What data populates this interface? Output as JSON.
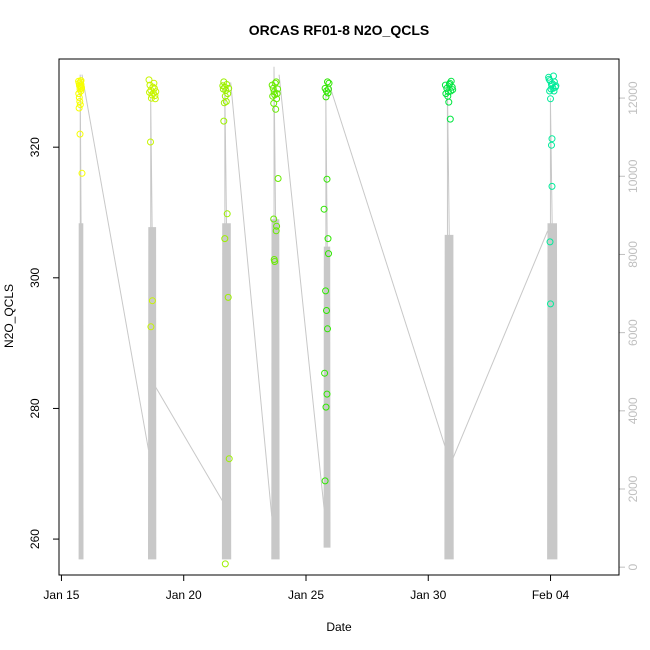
{
  "chart_data": {
    "type": "scatter",
    "title": "ORCAS RF01-8 N2O_QCLS",
    "xlabel": "Date",
    "ylabel": "N2O_QCLS",
    "x_ticks": [
      "Jan 15",
      "Jan 20",
      "Jan 25",
      "Jan 30",
      "Feb 04"
    ],
    "x_tick_days": [
      15,
      20,
      25,
      30,
      35
    ],
    "xlim_days": [
      14.9,
      37.8
    ],
    "ylim": [
      254.5,
      333.5
    ],
    "y_ticks": [
      260,
      280,
      300,
      320
    ],
    "y2lim": [
      -200,
      13000
    ],
    "y2_ticks": [
      0,
      2000,
      4000,
      6000,
      8000,
      10000,
      12000
    ],
    "grid": false,
    "series": [
      {
        "color": "#f7ff00",
        "points": [
          [
            15.72,
            329.8
          ],
          [
            15.74,
            329.4
          ],
          [
            15.76,
            328.9
          ],
          [
            15.78,
            330.0
          ],
          [
            15.8,
            329.6
          ],
          [
            15.71,
            328.2
          ],
          [
            15.73,
            327.6
          ],
          [
            15.75,
            327.0
          ],
          [
            15.77,
            326.5
          ],
          [
            15.79,
            328.6
          ],
          [
            15.81,
            329.2
          ],
          [
            15.7,
            330.1
          ],
          [
            15.82,
            329.0
          ],
          [
            15.76,
            322.0
          ],
          [
            15.84,
            316.0
          ],
          [
            15.72,
            326.0
          ],
          [
            15.8,
            330.2
          ],
          [
            15.78,
            329.3
          ]
        ]
      },
      {
        "color": "#c8f500",
        "points": [
          [
            18.58,
            330.3
          ],
          [
            18.62,
            329.5
          ],
          [
            18.66,
            328.7
          ],
          [
            18.7,
            328.0
          ],
          [
            18.74,
            329.2
          ],
          [
            18.78,
            329.8
          ],
          [
            18.82,
            327.9
          ],
          [
            18.86,
            328.5
          ],
          [
            18.6,
            328.4
          ],
          [
            18.68,
            327.5
          ],
          [
            18.76,
            328.3
          ],
          [
            18.84,
            327.4
          ],
          [
            18.64,
            320.8
          ],
          [
            18.72,
            296.5
          ],
          [
            18.66,
            292.5
          ],
          [
            18.8,
            329.0
          ]
        ]
      },
      {
        "color": "#9cf000",
        "points": [
          [
            21.6,
            329.4
          ],
          [
            21.64,
            330.0
          ],
          [
            21.68,
            329.2
          ],
          [
            21.72,
            328.7
          ],
          [
            21.76,
            329.6
          ],
          [
            21.8,
            328.2
          ],
          [
            21.84,
            329.0
          ],
          [
            21.62,
            328.9
          ],
          [
            21.7,
            327.8
          ],
          [
            21.66,
            326.8
          ],
          [
            21.74,
            327.0
          ],
          [
            21.64,
            324.0
          ],
          [
            21.78,
            309.8
          ],
          [
            21.68,
            306.0
          ],
          [
            21.82,
            297.0
          ],
          [
            21.86,
            272.3
          ],
          [
            21.7,
            256.2
          ]
        ]
      },
      {
        "color": "#68eb00",
        "points": [
          [
            23.62,
            329.5
          ],
          [
            23.66,
            329.0
          ],
          [
            23.7,
            328.5
          ],
          [
            23.74,
            329.8
          ],
          [
            23.78,
            330.0
          ],
          [
            23.82,
            328.2
          ],
          [
            23.64,
            327.8
          ],
          [
            23.72,
            328.0
          ],
          [
            23.8,
            327.4
          ],
          [
            23.68,
            326.7
          ],
          [
            23.76,
            325.8
          ],
          [
            23.86,
            315.2
          ],
          [
            23.8,
            307.9
          ],
          [
            23.78,
            307.2
          ],
          [
            23.7,
            302.8
          ],
          [
            23.72,
            302.5
          ],
          [
            23.68,
            309.0
          ],
          [
            23.84,
            328.9
          ]
        ]
      },
      {
        "color": "#2fe600",
        "points": [
          [
            25.78,
            329.0
          ],
          [
            25.84,
            328.6
          ],
          [
            25.9,
            328.3
          ],
          [
            25.94,
            329.8
          ],
          [
            25.88,
            330.0
          ],
          [
            25.82,
            327.7
          ],
          [
            25.92,
            328.9
          ],
          [
            25.74,
            310.5
          ],
          [
            25.86,
            315.1
          ],
          [
            25.9,
            306.0
          ],
          [
            25.92,
            303.7
          ],
          [
            25.8,
            298.0
          ],
          [
            25.84,
            295.0
          ],
          [
            25.88,
            292.2
          ],
          [
            25.76,
            285.4
          ],
          [
            25.86,
            282.2
          ],
          [
            25.82,
            280.2
          ],
          [
            25.78,
            268.9
          ]
        ]
      },
      {
        "color": "#00e640",
        "points": [
          [
            30.7,
            329.5
          ],
          [
            30.76,
            329.0
          ],
          [
            30.82,
            328.5
          ],
          [
            30.88,
            329.8
          ],
          [
            30.94,
            330.1
          ],
          [
            31.0,
            328.8
          ],
          [
            30.72,
            328.2
          ],
          [
            30.8,
            327.8
          ],
          [
            30.86,
            329.6
          ],
          [
            30.92,
            328.6
          ],
          [
            30.84,
            326.9
          ],
          [
            30.9,
            324.3
          ],
          [
            30.98,
            329.2
          ]
        ]
      },
      {
        "color": "#00eb9a",
        "points": [
          [
            34.92,
            330.7
          ],
          [
            34.98,
            330.2
          ],
          [
            35.04,
            329.6
          ],
          [
            35.1,
            329.0
          ],
          [
            35.16,
            330.0
          ],
          [
            35.22,
            329.4
          ],
          [
            34.96,
            328.6
          ],
          [
            35.02,
            328.9
          ],
          [
            35.08,
            329.7
          ],
          [
            35.14,
            328.6
          ],
          [
            35.2,
            329.2
          ],
          [
            34.94,
            330.4
          ],
          [
            35.0,
            327.4
          ],
          [
            35.06,
            321.3
          ],
          [
            35.04,
            320.3
          ],
          [
            35.06,
            314.0
          ],
          [
            34.98,
            305.5
          ],
          [
            35.0,
            296.0
          ],
          [
            35.12,
            330.9
          ]
        ]
      }
    ],
    "altitude_line": {
      "color": "#c8c8c8",
      "flights": [
        {
          "start": 15.72,
          "end": 15.88,
          "max": 8800,
          "min": 200,
          "spike": 12600
        },
        {
          "start": 18.56,
          "end": 18.86,
          "max": 8700,
          "min": 200,
          "spike": 12000
        },
        {
          "start": 21.58,
          "end": 21.92,
          "max": 8800,
          "min": 200,
          "spike": 12300
        },
        {
          "start": 23.6,
          "end": 23.9,
          "max": 8900,
          "min": 200,
          "spike": 12800
        },
        {
          "start": 25.74,
          "end": 25.98,
          "max": 8200,
          "min": 500,
          "spike": 12200
        },
        {
          "start": 30.68,
          "end": 31.02,
          "max": 8500,
          "min": 200,
          "spike": 12400
        },
        {
          "start": 34.88,
          "end": 35.26,
          "max": 8800,
          "min": 200,
          "spike": 12000
        }
      ],
      "transits": [
        [
          [
            15.84,
            12600
          ],
          [
            18.56,
            3000
          ]
        ],
        [
          [
            18.86,
            4600
          ],
          [
            21.58,
            1700
          ]
        ],
        [
          [
            21.92,
            12400
          ],
          [
            23.6,
            1300
          ]
        ],
        [
          [
            23.9,
            12600
          ],
          [
            25.74,
            1500
          ]
        ],
        [
          [
            25.98,
            12300
          ],
          [
            30.68,
            3100
          ]
        ],
        [
          [
            31.02,
            2800
          ],
          [
            34.88,
            8600
          ]
        ]
      ]
    }
  }
}
